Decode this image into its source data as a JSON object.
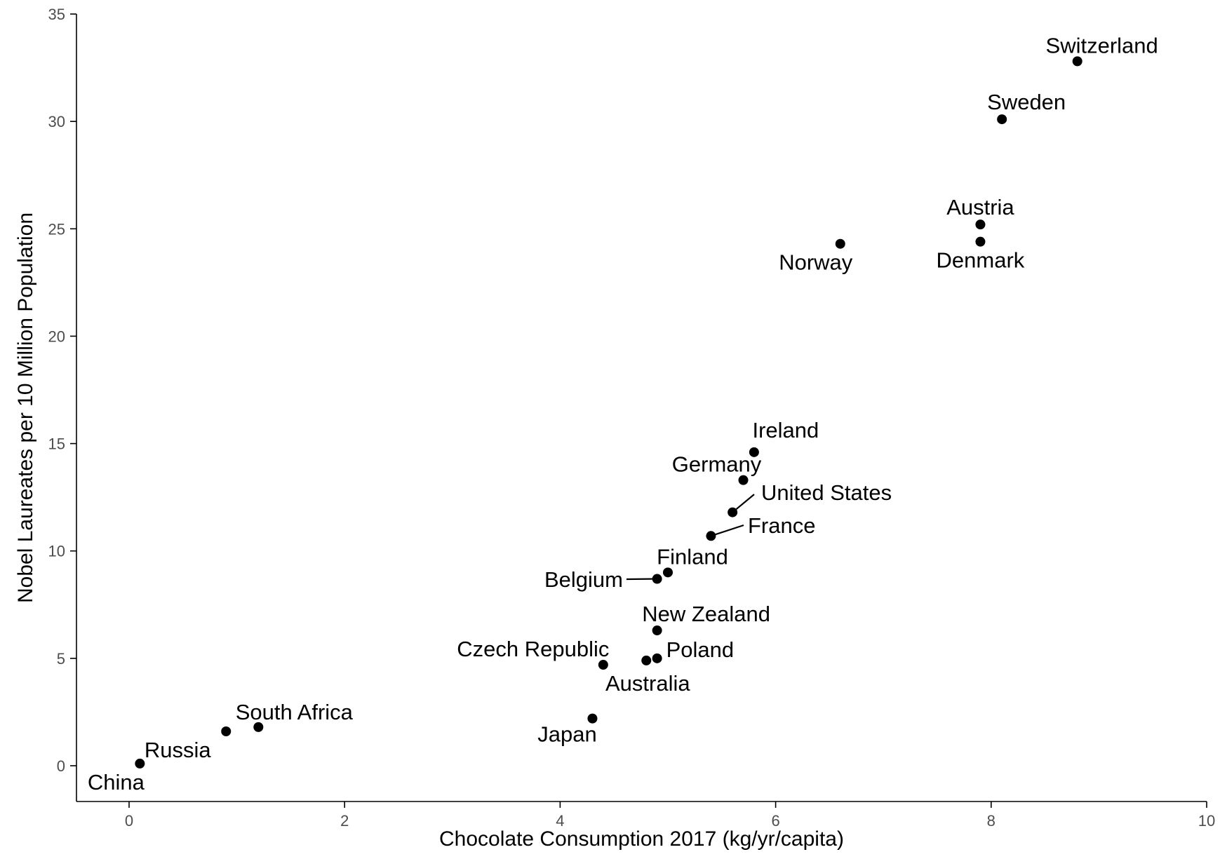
{
  "chart_data": {
    "type": "scatter",
    "title": "",
    "xlabel": "Chocolate Consumption 2017 (kg/yr/capita)",
    "ylabel": "Nobel Laureates per 10 Million Population",
    "xlim": [
      -0.5,
      10
    ],
    "ylim": [
      -1.2,
      35
    ],
    "xticks": [
      0,
      2,
      4,
      6,
      8,
      10
    ],
    "yticks": [
      0,
      5,
      10,
      15,
      20,
      25,
      30,
      35
    ],
    "grid": false,
    "legend": "none",
    "point_color": "#000000",
    "points": [
      {
        "label": "Switzerland",
        "x": 8.8,
        "y": 32.8
      },
      {
        "label": "Sweden",
        "x": 8.1,
        "y": 30.1
      },
      {
        "label": "Austria",
        "x": 7.9,
        "y": 25.2
      },
      {
        "label": "Denmark",
        "x": 7.9,
        "y": 24.4
      },
      {
        "label": "Norway",
        "x": 6.6,
        "y": 24.3
      },
      {
        "label": "Ireland",
        "x": 5.8,
        "y": 14.6
      },
      {
        "label": "Germany",
        "x": 5.7,
        "y": 13.3
      },
      {
        "label": "United States",
        "x": 5.6,
        "y": 11.8
      },
      {
        "label": "France",
        "x": 5.4,
        "y": 10.7
      },
      {
        "label": "Finland",
        "x": 5.0,
        "y": 9.0
      },
      {
        "label": "Belgium",
        "x": 4.9,
        "y": 8.7
      },
      {
        "label": "New Zealand",
        "x": 4.9,
        "y": 6.3
      },
      {
        "label": "Poland",
        "x": 4.9,
        "y": 5.0
      },
      {
        "label": "Australia",
        "x": 4.8,
        "y": 4.9
      },
      {
        "label": "Czech Republic",
        "x": 4.4,
        "y": 4.7
      },
      {
        "label": "Japan",
        "x": 4.3,
        "y": 2.2
      },
      {
        "label": "South Africa",
        "x": 1.2,
        "y": 1.8
      },
      {
        "label": "Russia",
        "x": 0.9,
        "y": 1.6
      },
      {
        "label": "China",
        "x": 0.1,
        "y": 0.1
      }
    ]
  }
}
